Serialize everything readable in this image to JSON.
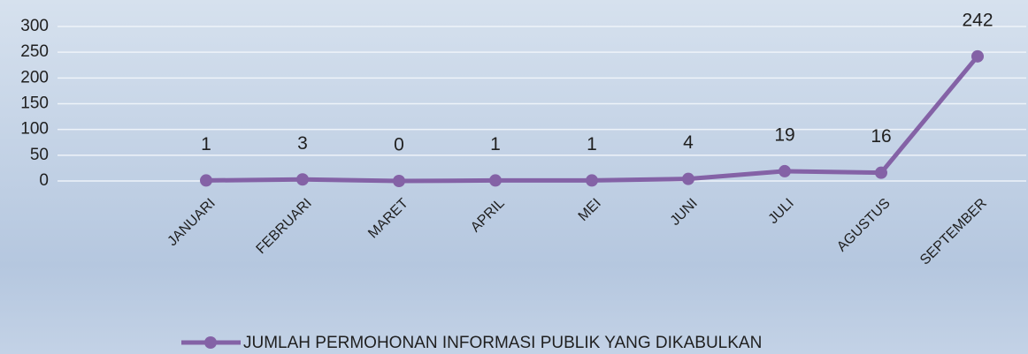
{
  "chart_data": {
    "type": "line",
    "categories": [
      "JANUARI",
      "FEBRUARI",
      "MARET",
      "APRIL",
      "MEI",
      "JUNI",
      "JULI",
      "AGUSTUS",
      "SEPTEMBER"
    ],
    "series": [
      {
        "name": "JUMLAH PERMOHONAN INFORMASI PUBLIK YANG DIKABULKAN",
        "color": "#8462a6",
        "values": [
          1,
          3,
          0,
          1,
          1,
          4,
          19,
          16,
          242
        ]
      }
    ],
    "ylim": [
      0,
      300
    ],
    "yticks": [
      0,
      50,
      100,
      150,
      200,
      250,
      300
    ],
    "grid": true,
    "legend": "bottom"
  }
}
